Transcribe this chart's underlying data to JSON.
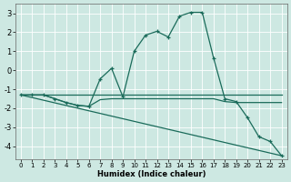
{
  "xlabel": "Humidex (Indice chaleur)",
  "xlim": [
    -0.5,
    23.5
  ],
  "ylim": [
    -4.7,
    3.5
  ],
  "xticks": [
    0,
    1,
    2,
    3,
    4,
    5,
    6,
    7,
    8,
    9,
    10,
    11,
    12,
    13,
    14,
    15,
    16,
    17,
    18,
    19,
    20,
    21,
    22,
    23
  ],
  "yticks": [
    -4,
    -3,
    -2,
    -1,
    0,
    1,
    2,
    3
  ],
  "background_color": "#cde8e2",
  "grid_color": "#b0d4cc",
  "line_color": "#1a6b5a",
  "line1": {
    "x": [
      0,
      1,
      2,
      3,
      4,
      5,
      6,
      7,
      8,
      9,
      10,
      11,
      12,
      13,
      14,
      15,
      16,
      17,
      18,
      19,
      20,
      21,
      22,
      23
    ],
    "y": [
      -1.3,
      -1.3,
      -1.3,
      -1.3,
      -1.3,
      -1.3,
      -1.3,
      -1.3,
      -1.3,
      -1.3,
      -1.3,
      -1.3,
      -1.3,
      -1.3,
      -1.3,
      -1.3,
      -1.3,
      -1.3,
      -1.3,
      -1.3,
      -1.3,
      -1.3,
      -1.3,
      -1.3
    ]
  },
  "line2": {
    "x": [
      0,
      1,
      2,
      3,
      4,
      5,
      6,
      7,
      8,
      9,
      10,
      11,
      12,
      13,
      14,
      15,
      16,
      17,
      18,
      19,
      20,
      21,
      22,
      23
    ],
    "y": [
      -1.3,
      -1.3,
      -1.3,
      -1.5,
      -1.7,
      -1.85,
      -1.9,
      -1.55,
      -1.5,
      -1.5,
      -1.5,
      -1.5,
      -1.5,
      -1.5,
      -1.5,
      -1.5,
      -1.5,
      -1.5,
      -1.65,
      -1.7,
      -1.7,
      -1.7,
      -1.7,
      -1.7
    ]
  },
  "line3_no_markers": {
    "x": [
      0,
      23
    ],
    "y": [
      -1.3,
      -4.5
    ]
  },
  "line4_markers": {
    "x": [
      0,
      1,
      2,
      3,
      4,
      5,
      6,
      7,
      8,
      9,
      10,
      11,
      12,
      13,
      14,
      15,
      16,
      17,
      18,
      19,
      20,
      21,
      22,
      23
    ],
    "y": [
      -1.3,
      -1.3,
      -1.3,
      -1.5,
      -1.7,
      -1.85,
      -1.9,
      -0.45,
      0.1,
      -1.4,
      1.0,
      1.85,
      2.05,
      1.75,
      2.85,
      3.05,
      3.05,
      0.65,
      -1.5,
      -1.65,
      -2.5,
      -3.5,
      -3.75,
      -4.5
    ]
  }
}
